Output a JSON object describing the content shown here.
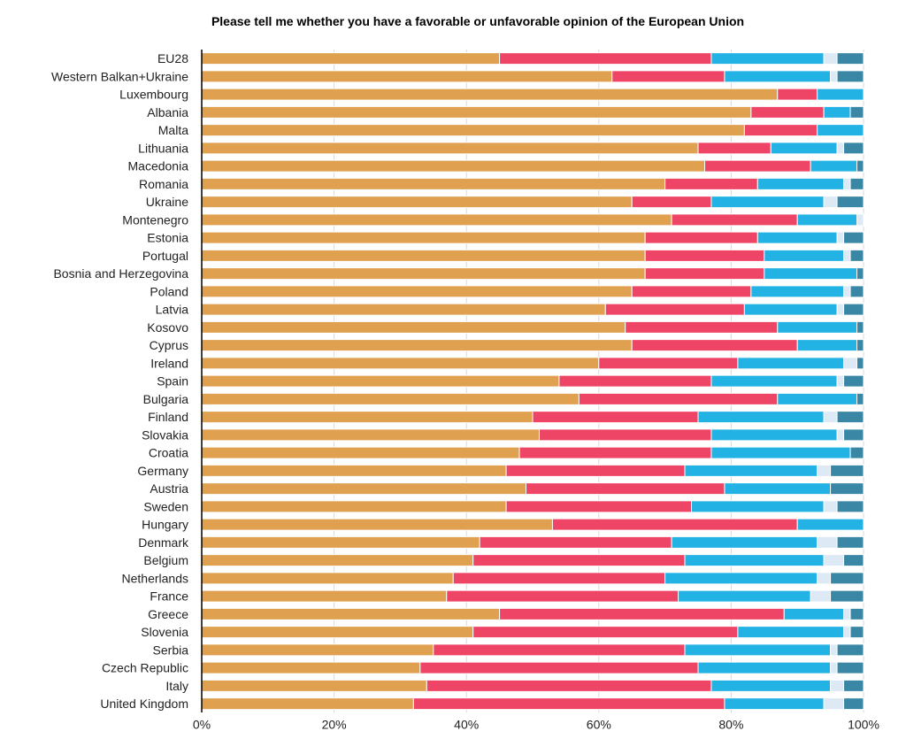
{
  "chart_data": {
    "type": "bar",
    "orientation": "horizontal",
    "stacked": true,
    "title": "Please tell me whether you have a favorable or unfavorable opinion of the European Union",
    "xlabel": "",
    "ylabel": "",
    "xlim": [
      0,
      100
    ],
    "x_tick_labels": [
      "0%",
      "20%",
      "40%",
      "60%",
      "80%",
      "100%"
    ],
    "x_ticks": [
      0,
      20,
      40,
      60,
      80,
      100
    ],
    "grid": true,
    "legend": null,
    "categories": [
      "EU28",
      "Western Balkan+Ukraine",
      "Luxembourg",
      "Albania",
      "Malta",
      "Lithuania",
      "Macedonia",
      "Romania",
      "Ukraine",
      "Montenegro",
      "Estonia",
      "Portugal",
      "Bosnia and Herzegovina",
      "Poland",
      "Latvia",
      "Kosovo",
      "Cyprus",
      "Ireland",
      "Spain",
      "Bulgaria",
      "Finland",
      "Slovakia",
      "Croatia",
      "Germany",
      "Austria",
      "Sweden",
      "Hungary",
      "Denmark",
      "Belgium",
      "Netherlands",
      "France",
      "Greece",
      "Slovenia",
      "Serbia",
      "Czech Republic",
      "Italy",
      "United Kingdom"
    ],
    "series": [
      {
        "name": "segment-1",
        "color": "#DFA050",
        "values": [
          45,
          62,
          87,
          83,
          82,
          75,
          76,
          70,
          65,
          71,
          67,
          67,
          67,
          65,
          61,
          64,
          65,
          60,
          54,
          57,
          50,
          51,
          48,
          46,
          49,
          46,
          53,
          42,
          41,
          38,
          37,
          45,
          41,
          35,
          33,
          34,
          32
        ]
      },
      {
        "name": "segment-2",
        "color": "#EE4466",
        "values": [
          32,
          17,
          6,
          11,
          11,
          11,
          16,
          14,
          12,
          19,
          17,
          18,
          18,
          18,
          21,
          23,
          25,
          21,
          23,
          30,
          25,
          26,
          29,
          27,
          30,
          28,
          37,
          29,
          32,
          32,
          35,
          43,
          40,
          38,
          42,
          43,
          47
        ]
      },
      {
        "name": "segment-3",
        "color": "#22B2E4",
        "values": [
          17,
          16,
          7,
          4,
          7,
          10,
          7,
          13,
          17,
          9,
          12,
          12,
          14,
          14,
          14,
          12,
          9,
          16,
          19,
          12,
          19,
          19,
          21,
          20,
          16,
          20,
          10,
          22,
          21,
          23,
          20,
          9,
          16,
          22,
          20,
          18,
          15
        ]
      },
      {
        "name": "segment-4",
        "color": "#DDE9F5",
        "values": [
          2,
          1,
          0,
          0,
          0,
          1,
          0,
          1,
          2,
          1,
          1,
          1,
          0,
          1,
          1,
          0,
          0,
          2,
          1,
          0,
          2,
          1,
          0,
          2,
          0,
          2,
          0,
          3,
          3,
          2,
          3,
          1,
          1,
          1,
          1,
          2,
          3
        ]
      },
      {
        "name": "segment-5",
        "color": "#3A87A5",
        "values": [
          4,
          4,
          0,
          2,
          0,
          3,
          1,
          2,
          4,
          0,
          3,
          2,
          1,
          2,
          3,
          1,
          1,
          1,
          3,
          1,
          4,
          3,
          2,
          5,
          5,
          4,
          0,
          4,
          3,
          5,
          5,
          2,
          2,
          4,
          4,
          3,
          3
        ]
      }
    ]
  }
}
